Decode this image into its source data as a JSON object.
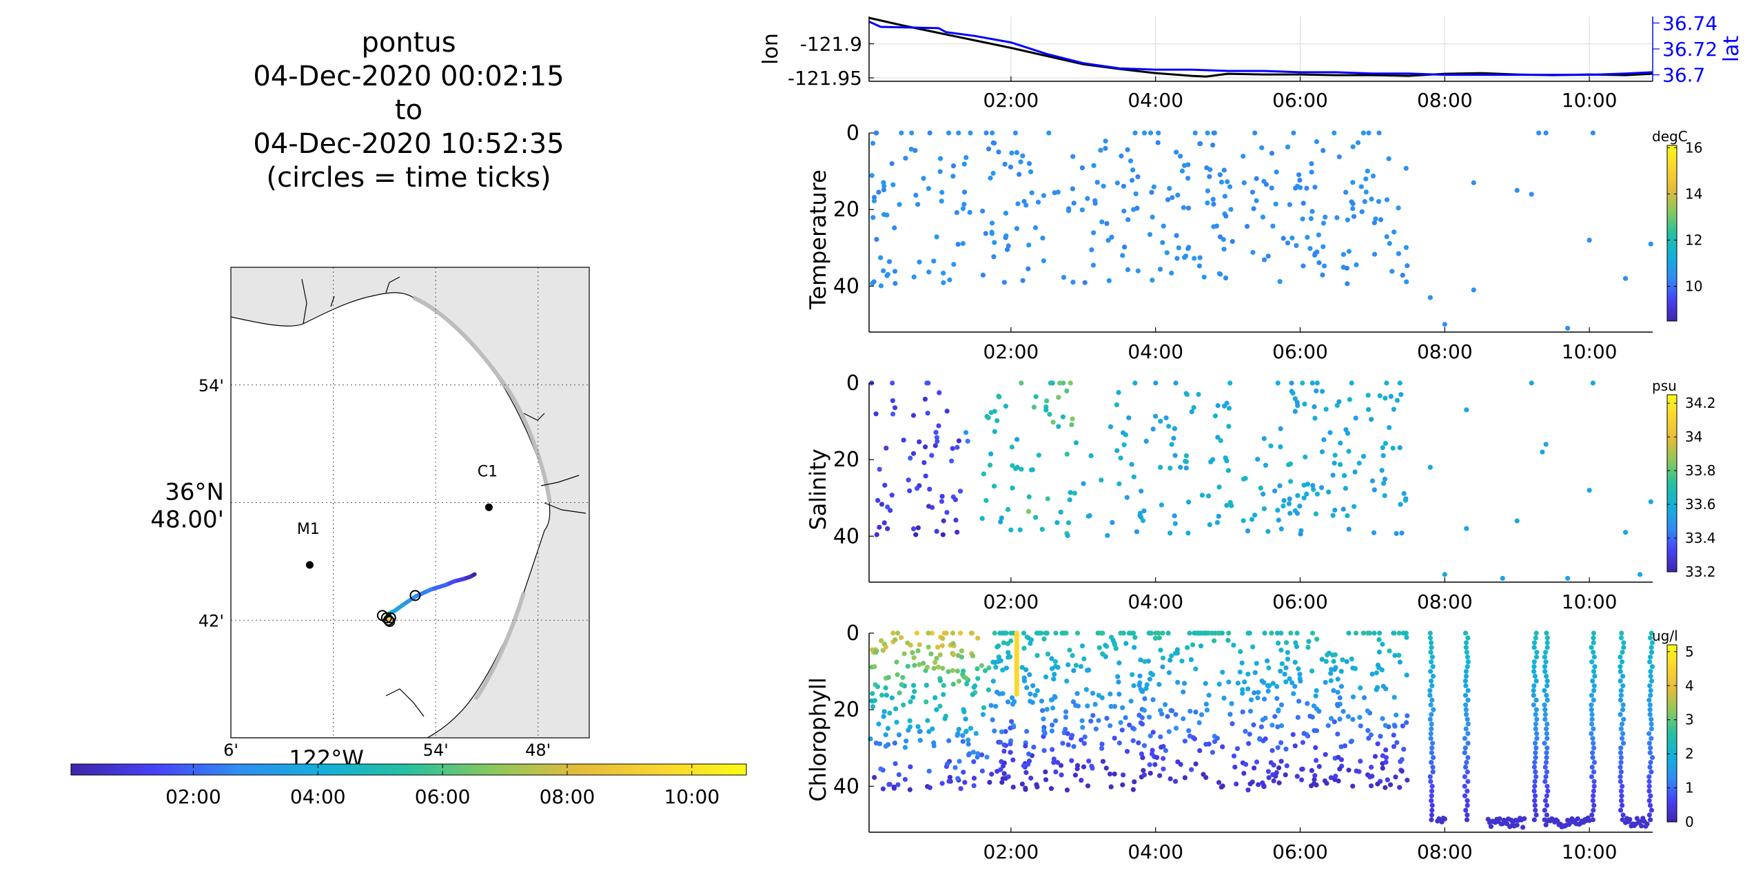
{
  "title_block": {
    "line1": "pontus",
    "line2": "04-Dec-2020 00:02:15",
    "line3": "to",
    "line4": "04-Dec-2020 10:52:35",
    "line5": "(circles = time ticks)"
  },
  "colors": {
    "parula": [
      "#3e26a8",
      "#4743f8",
      "#2f8ff1",
      "#13b0d9",
      "#26c19f",
      "#8bc85d",
      "#e4bb3b",
      "#fbd52f",
      "#f9fb15"
    ],
    "lon_line": "#000000",
    "lat_line": "#0000ff",
    "land": "#e6e6e6",
    "water": "#ffffff"
  },
  "chart_data": [
    {
      "id": "track_map",
      "type": "scatter",
      "lat_labels": [
        "54'",
        "36°N 48.00'",
        "42'"
      ],
      "lat_values": [
        36.9,
        36.8,
        36.7
      ],
      "lon_labels": [
        "6'",
        "122°W",
        "54'",
        "48'"
      ],
      "lon_values": [
        -122.1,
        -122.0,
        -121.9,
        -121.8
      ],
      "xlim": [
        -122.1,
        -121.75
      ],
      "ylim": [
        36.6,
        37.0
      ],
      "stations": [
        {
          "name": "M1",
          "lon": -122.023,
          "lat": 36.747
        },
        {
          "name": "C1",
          "lon": -121.848,
          "lat": 36.796
        }
      ],
      "track": [
        {
          "t": 0.04,
          "lon": -121.862,
          "lat": 36.739
        },
        {
          "t": 0.5,
          "lon": -121.866,
          "lat": 36.737
        },
        {
          "t": 1.0,
          "lon": -121.873,
          "lat": 36.735
        },
        {
          "t": 1.5,
          "lon": -121.882,
          "lat": 36.733
        },
        {
          "t": 2.0,
          "lon": -121.89,
          "lat": 36.73
        },
        {
          "t": 2.5,
          "lon": -121.905,
          "lat": 36.726
        },
        {
          "t": 3.0,
          "lon": -121.92,
          "lat": 36.72
        },
        {
          "t": 3.5,
          "lon": -121.932,
          "lat": 36.713
        },
        {
          "t": 4.0,
          "lon": -121.94,
          "lat": 36.708
        },
        {
          "t": 4.5,
          "lon": -121.945,
          "lat": 36.706
        },
        {
          "t": 5.0,
          "lon": -121.947,
          "lat": 36.704
        },
        {
          "t": 6.0,
          "lon": -121.947,
          "lat": 36.703
        },
        {
          "t": 7.0,
          "lon": -121.946,
          "lat": 36.702
        },
        {
          "t": 8.0,
          "lon": -121.946,
          "lat": 36.701
        },
        {
          "t": 9.0,
          "lon": -121.945,
          "lat": 36.701
        },
        {
          "t": 10.0,
          "lon": -121.944,
          "lat": 36.701
        },
        {
          "t": 10.87,
          "lon": -121.944,
          "lat": 36.702
        }
      ],
      "time_tick_circles": [
        {
          "lon": -121.92,
          "lat": 36.721
        },
        {
          "lon": -121.952,
          "lat": 36.704
        },
        {
          "lon": -121.948,
          "lat": 36.702
        },
        {
          "lon": -121.946,
          "lat": 36.7
        },
        {
          "lon": -121.944,
          "lat": 36.702
        },
        {
          "lon": -121.945,
          "lat": 36.699
        }
      ],
      "colorbar_ticks": [
        "02:00",
        "04:00",
        "06:00",
        "08:00",
        "10:00"
      ],
      "colorbar_tick_hours": [
        2,
        4,
        6,
        8,
        10
      ],
      "colorbar_range_hours": [
        0.0375,
        10.876
      ]
    },
    {
      "id": "lon_lat",
      "type": "line",
      "ylabel": "lon",
      "ylabel_right": "lat",
      "xlim_hours": [
        0.0375,
        10.876
      ],
      "xticks": [
        "02:00",
        "04:00",
        "06:00",
        "08:00",
        "10:00"
      ],
      "xtick_hours": [
        2,
        4,
        6,
        8,
        10
      ],
      "yticks_left": [
        "-121.9",
        "-121.95"
      ],
      "ytick_left_values": [
        -121.9,
        -121.95
      ],
      "ylim_left": [
        -121.955,
        -121.86
      ],
      "yticks_right": [
        "36.74",
        "36.72",
        "36.7"
      ],
      "ytick_right_values": [
        36.74,
        36.72,
        36.7
      ],
      "ylim_right": [
        36.695,
        36.745
      ],
      "series": [
        {
          "name": "lon",
          "axis": "left",
          "x": [
            0.04,
            0.5,
            1.0,
            1.5,
            2.0,
            2.5,
            3.0,
            3.5,
            4.0,
            4.5,
            4.7,
            5.0,
            5.5,
            6.0,
            6.5,
            7.0,
            7.5,
            8.0,
            8.5,
            9.0,
            9.5,
            10.0,
            10.5,
            10.87
          ],
          "values": [
            -121.862,
            -121.873,
            -121.884,
            -121.895,
            -121.906,
            -121.918,
            -121.93,
            -121.937,
            -121.943,
            -121.947,
            -121.948,
            -121.944,
            -121.945,
            -121.945,
            -121.946,
            -121.946,
            -121.947,
            -121.944,
            -121.943,
            -121.945,
            -121.946,
            -121.945,
            -121.946,
            -121.944
          ]
        },
        {
          "name": "lat",
          "axis": "right",
          "x": [
            0.04,
            0.2,
            1.0,
            1.1,
            1.5,
            2.0,
            2.5,
            3.0,
            3.5,
            4.0,
            4.5,
            5.0,
            5.5,
            6.0,
            6.5,
            7.0,
            7.5,
            8.0,
            8.5,
            9.0,
            9.5,
            10.0,
            10.5,
            10.87
          ],
          "values": [
            36.741,
            36.737,
            36.736,
            36.733,
            36.73,
            36.725,
            36.716,
            36.709,
            36.705,
            36.704,
            36.704,
            36.703,
            36.703,
            36.702,
            36.702,
            36.701,
            36.701,
            36.7,
            36.7,
            36.7,
            36.7,
            36.7,
            36.701,
            36.702
          ]
        }
      ]
    },
    {
      "id": "temperature",
      "type": "scatter",
      "ylabel": "Temperature",
      "xticks": [
        "02:00",
        "04:00",
        "06:00",
        "08:00",
        "10:00"
      ],
      "xtick_hours": [
        2,
        4,
        6,
        8,
        10
      ],
      "xlim_hours": [
        0.0375,
        10.876
      ],
      "yticks": [
        "0",
        "20",
        "40"
      ],
      "ytick_values": [
        0,
        20,
        40
      ],
      "ylim": [
        0,
        52
      ],
      "colorbar_label": "degC",
      "colorbar_ticks": [
        "16",
        "14",
        "12",
        "10"
      ],
      "colorbar_tick_values": [
        16,
        14,
        12,
        10
      ],
      "colorbar_range": [
        8.5,
        16.1
      ],
      "points_note": "generated",
      "gaps_hours": [
        [
          7.6,
          12
        ]
      ],
      "sparse": [
        [
          7.8,
          43
        ],
        [
          8.0,
          50
        ],
        [
          8.4,
          41
        ],
        [
          8.4,
          13
        ],
        [
          9.0,
          15
        ],
        [
          9.2,
          16
        ],
        [
          9.3,
          0
        ],
        [
          9.4,
          0
        ],
        [
          9.7,
          51
        ],
        [
          10.0,
          28
        ],
        [
          10.05,
          0
        ],
        [
          10.5,
          38
        ],
        [
          10.85,
          29
        ]
      ],
      "value_default": 10.4
    },
    {
      "id": "salinity",
      "type": "scatter",
      "ylabel": "Salinity",
      "xticks": [
        "02:00",
        "04:00",
        "06:00",
        "08:00",
        "10:00"
      ],
      "xtick_hours": [
        2,
        4,
        6,
        8,
        10
      ],
      "xlim_hours": [
        0.0375,
        10.876
      ],
      "yticks": [
        "0",
        "20",
        "40"
      ],
      "ytick_values": [
        0,
        20,
        40
      ],
      "ylim": [
        0,
        52
      ],
      "colorbar_label": "psu",
      "colorbar_ticks": [
        "34.2",
        "34",
        "33.8",
        "33.6",
        "33.4",
        "33.2"
      ],
      "colorbar_tick_values": [
        34.2,
        34.0,
        33.8,
        33.6,
        33.4,
        33.2
      ],
      "colorbar_range": [
        33.2,
        34.25
      ],
      "sparse": [
        [
          7.8,
          22
        ],
        [
          8.0,
          50
        ],
        [
          8.3,
          38
        ],
        [
          8.3,
          7
        ],
        [
          8.8,
          51
        ],
        [
          9.0,
          36
        ],
        [
          9.2,
          0
        ],
        [
          9.35,
          18
        ],
        [
          9.4,
          16
        ],
        [
          9.7,
          51
        ],
        [
          10.0,
          28
        ],
        [
          10.05,
          0
        ],
        [
          10.5,
          39
        ],
        [
          10.7,
          50
        ],
        [
          10.85,
          31
        ]
      ],
      "value_default": 33.55
    },
    {
      "id": "chlorophyll",
      "type": "scatter",
      "ylabel": "Chlorophyll",
      "xticks": [
        "02:00",
        "04:00",
        "06:00",
        "08:00",
        "10:00"
      ],
      "xtick_hours": [
        2,
        4,
        6,
        8,
        10
      ],
      "xlim_hours": [
        0.0375,
        10.876
      ],
      "yticks": [
        "0",
        "20",
        "40"
      ],
      "ytick_values": [
        0,
        20,
        40
      ],
      "ylim": [
        0,
        52
      ],
      "colorbar_label": "ug/l",
      "colorbar_ticks": [
        "5",
        "4",
        "3",
        "2",
        "1",
        "0"
      ],
      "colorbar_tick_values": [
        5,
        4,
        3,
        2,
        1,
        0
      ],
      "colorbar_range": [
        0,
        5.2
      ]
    }
  ]
}
